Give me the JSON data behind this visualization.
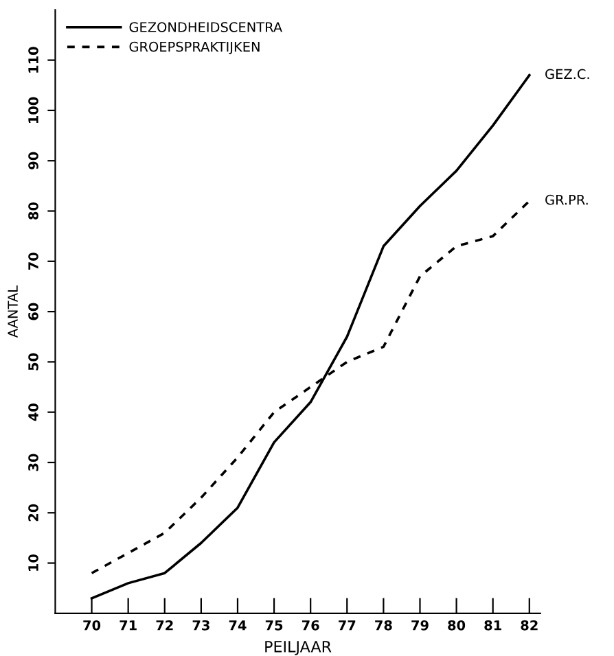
{
  "chart_data": {
    "type": "line",
    "xlabel": "PEILJAAR",
    "ylabel": "AANTAL",
    "x": [
      70,
      71,
      72,
      73,
      74,
      75,
      76,
      77,
      78,
      79,
      80,
      81,
      82
    ],
    "series": [
      {
        "name": "GEZONDHEIDSCENTRA",
        "color": "#000000",
        "line_style": "solid",
        "values": [
          3,
          6,
          8,
          14,
          21,
          34,
          42,
          55,
          73,
          81,
          88,
          97,
          107
        ]
      },
      {
        "name": "GROEPSPRAKTIJKEN",
        "color": "#000000",
        "line_style": "dashed",
        "values": [
          8,
          12,
          16,
          23,
          31,
          40,
          45,
          50,
          53,
          67,
          73,
          75,
          82
        ]
      }
    ],
    "xlim": [
      69,
      82.3
    ],
    "ylim": [
      0,
      120
    ],
    "xticks": [
      70,
      71,
      72,
      73,
      74,
      75,
      76,
      77,
      78,
      79,
      80,
      81,
      82
    ],
    "yticks": [
      10,
      20,
      30,
      40,
      50,
      60,
      70,
      80,
      90,
      100,
      110
    ],
    "annotations": [
      {
        "text": "GEZ.C.",
        "x": 82,
        "y": 107
      },
      {
        "text": "GR.PR.",
        "x": 82,
        "y": 82
      }
    ],
    "legend": "top left",
    "grid": false,
    "marker": "none"
  }
}
